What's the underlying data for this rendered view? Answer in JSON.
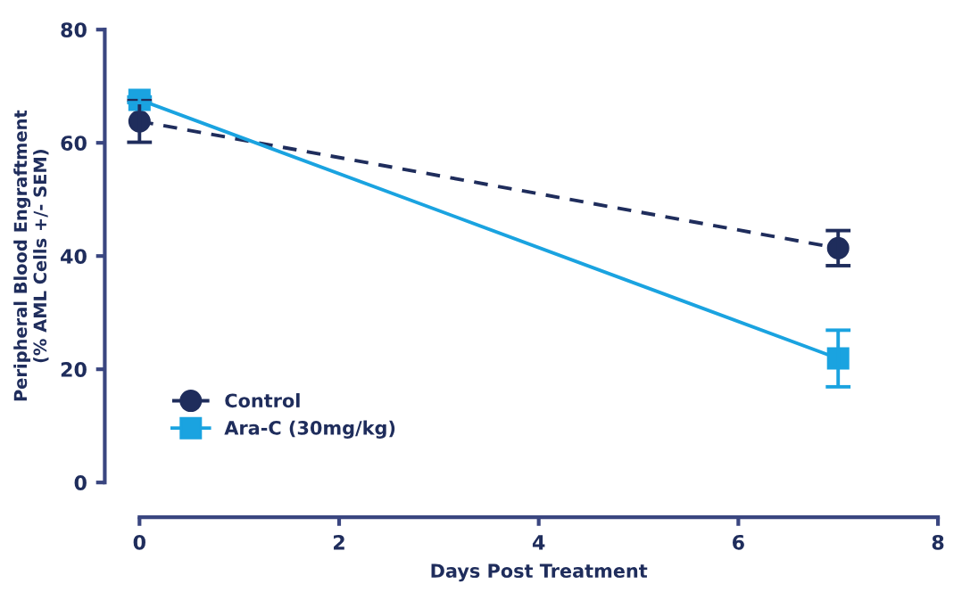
{
  "chart_data": {
    "type": "line",
    "xlabel": "Days Post Treatment",
    "ylabel": "Peripheral Blood Engraftment\n(% AML Cells +/- SEM)",
    "x": [
      0,
      7
    ],
    "xlim": [
      0,
      8
    ],
    "xticks": [
      0,
      2,
      4,
      6,
      8
    ],
    "ylim": [
      0,
      80
    ],
    "yticks": [
      0,
      20,
      40,
      60,
      80
    ],
    "grid": false,
    "legend": "bottom left",
    "series": [
      {
        "name": "Control",
        "color": "#1f2d5c",
        "values": [
          63.8,
          41.4
        ],
        "errors": [
          3.7,
          3.1
        ],
        "marker": "circle",
        "line_style": "dashed"
      },
      {
        "name": "Ara-C (30mg/kg)",
        "color": "#1aa3e0",
        "values": [
          67.6,
          21.9
        ],
        "errors": [
          0.5,
          5
        ],
        "marker": "square",
        "line_style": "solid"
      }
    ]
  }
}
